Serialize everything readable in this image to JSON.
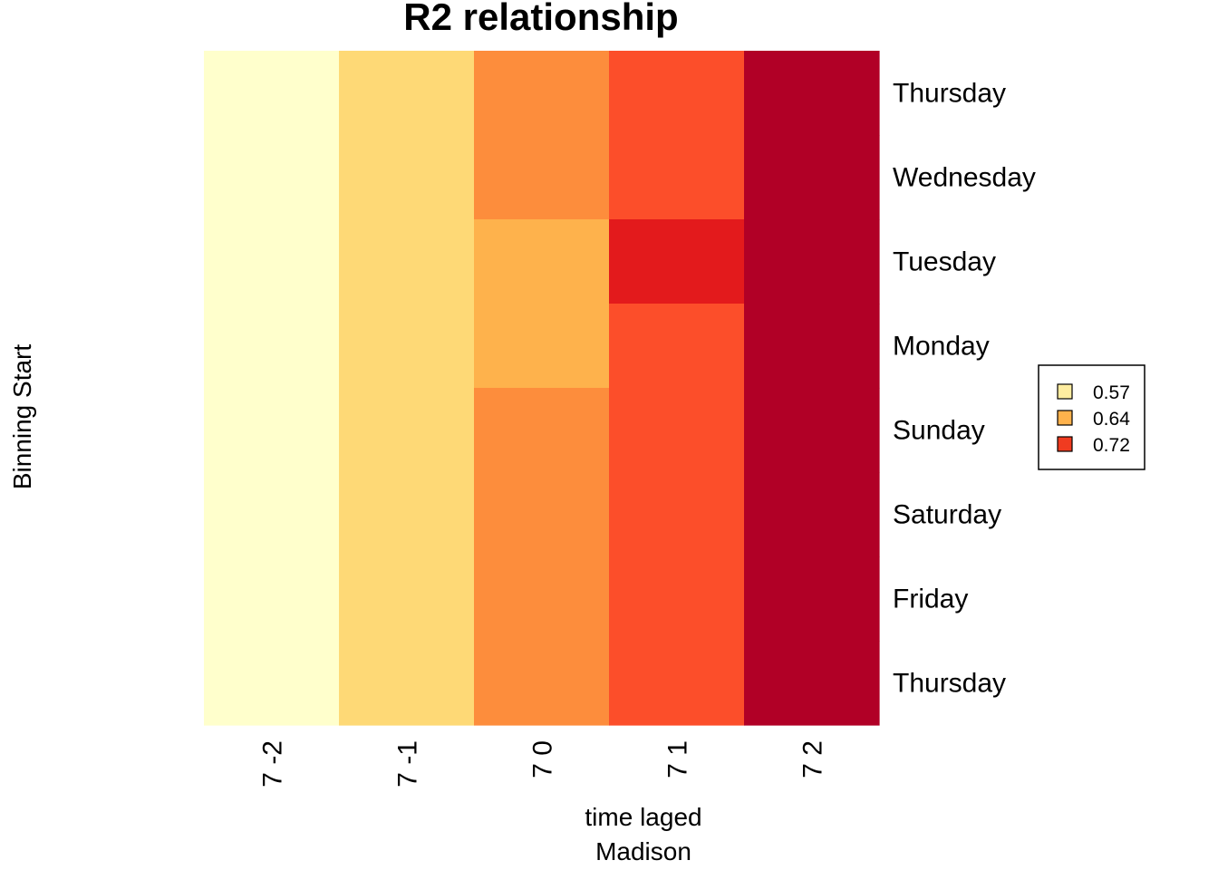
{
  "chart_data": {
    "type": "heatmap",
    "title": "R2 relationship",
    "xlabel": "time laged",
    "xlabel_sub": "Madison",
    "ylabel": "Binning Start",
    "x_categories": [
      "7 -2",
      "7 -1",
      "7 0",
      "7 1",
      "7 2"
    ],
    "y_categories": [
      "Thursday",
      "Wednesday",
      "Tuesday",
      "Monday",
      "Sunday",
      "Saturday",
      "Friday",
      "Thursday"
    ],
    "values": [
      [
        0.55,
        0.61,
        0.67,
        0.72,
        0.78
      ],
      [
        0.55,
        0.61,
        0.67,
        0.72,
        0.78
      ],
      [
        0.55,
        0.61,
        0.64,
        0.75,
        0.78
      ],
      [
        0.55,
        0.61,
        0.64,
        0.72,
        0.78
      ],
      [
        0.55,
        0.61,
        0.67,
        0.72,
        0.78
      ],
      [
        0.55,
        0.61,
        0.67,
        0.72,
        0.78
      ],
      [
        0.55,
        0.61,
        0.67,
        0.72,
        0.78
      ],
      [
        0.55,
        0.61,
        0.67,
        0.72,
        0.78
      ]
    ],
    "color_scale": [
      {
        "value": 0.55,
        "color": "#FFFFCC"
      },
      {
        "value": 0.61,
        "color": "#FED976"
      },
      {
        "value": 0.64,
        "color": "#FEB24C"
      },
      {
        "value": 0.67,
        "color": "#FD8D3C"
      },
      {
        "value": 0.72,
        "color": "#FC4E2A"
      },
      {
        "value": 0.75,
        "color": "#E31A1C"
      },
      {
        "value": 0.78,
        "color": "#B10026"
      }
    ],
    "legend": {
      "position": "right",
      "entries": [
        {
          "label": "0.57",
          "color": "#FFEDA0"
        },
        {
          "label": "0.64",
          "color": "#FEB24C"
        },
        {
          "label": "0.72",
          "color": "#F03B20"
        }
      ]
    }
  }
}
